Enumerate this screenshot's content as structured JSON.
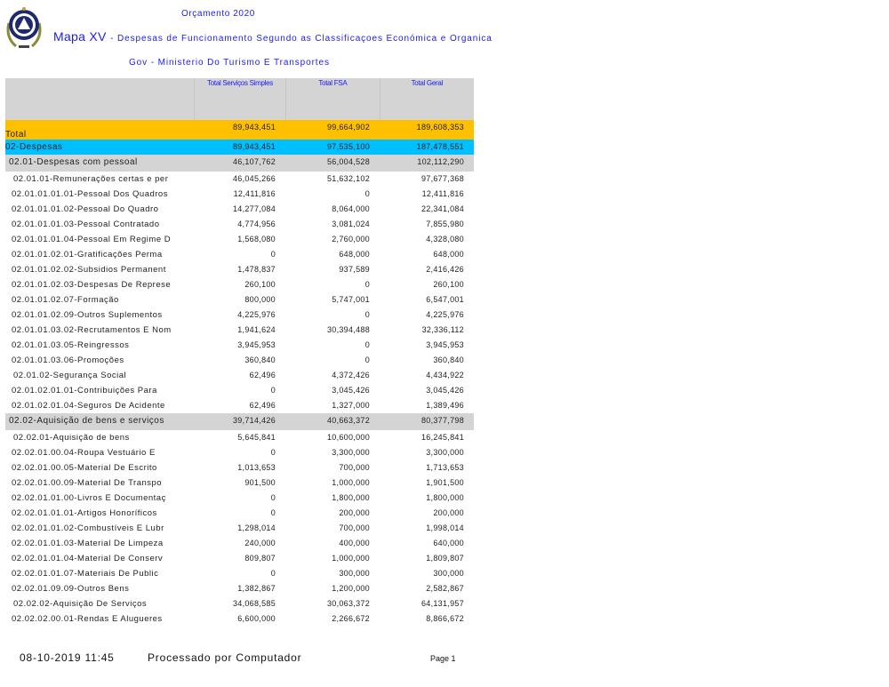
{
  "header": {
    "budget": "Orçamento 2020",
    "map_title": "Mapa XV",
    "map_subtitle": "- Despesas de Funcionamento Segundo as Classificaçoes Económica e Organica",
    "ministry": "Gov - Ministerio Do Turismo E Transportes"
  },
  "table": {
    "columns": [
      "",
      "Total Serviços Simples",
      "Total FSA",
      "Total Geral"
    ],
    "rows": [
      {
        "type": "total",
        "label": "Total",
        "v": [
          "89,943,451",
          "99,664,902",
          "189,608,353"
        ]
      },
      {
        "type": "desp",
        "label": "02-Despesas",
        "v": [
          "89,943,451",
          "97,535,100",
          "187,478,551"
        ]
      },
      {
        "type": "grp",
        "label": "02.01-Despesas com pessoal",
        "v": [
          "46,107,762",
          "56,004,528",
          "102,112,290"
        ]
      },
      {
        "type": "sub",
        "label": "02.01.01-Remunerações certas e per",
        "v": [
          "46,045,266",
          "51,632,102",
          "97,677,368"
        ]
      },
      {
        "type": "item",
        "label": "02.01.01.01.01-Pessoal Dos Quadros",
        "v": [
          "12,411,816",
          "0",
          "12,411,816"
        ]
      },
      {
        "type": "item",
        "label": "02.01.01.01.02-Pessoal Do Quadro",
        "v": [
          "14,277,084",
          "8,064,000",
          "22,341,084"
        ]
      },
      {
        "type": "item",
        "label": "02.01.01.01.03-Pessoal Contratado",
        "v": [
          "4,774,956",
          "3,081,024",
          "7,855,980"
        ]
      },
      {
        "type": "item",
        "label": "02.01.01.01.04-Pessoal Em Regime D",
        "v": [
          "1,568,080",
          "2,760,000",
          "4,328,080"
        ]
      },
      {
        "type": "item",
        "label": "02.01.01.02.01-Gratificações Perma",
        "v": [
          "0",
          "648,000",
          "648,000"
        ]
      },
      {
        "type": "item",
        "label": "02.01.01.02.02-Subsidios Permanent",
        "v": [
          "1,478,837",
          "937,589",
          "2,416,426"
        ]
      },
      {
        "type": "item",
        "label": "02.01.01.02.03-Despesas De Represe",
        "v": [
          "260,100",
          "0",
          "260,100"
        ]
      },
      {
        "type": "item",
        "label": "02.01.01.02.07-Formação",
        "v": [
          "800,000",
          "5,747,001",
          "6,547,001"
        ]
      },
      {
        "type": "item",
        "label": "02.01.01.02.09-Outros Suplementos",
        "v": [
          "4,225,976",
          "0",
          "4,225,976"
        ]
      },
      {
        "type": "item",
        "label": "02.01.01.03.02-Recrutamentos E Nom",
        "v": [
          "1,941,624",
          "30,394,488",
          "32,336,112"
        ]
      },
      {
        "type": "item",
        "label": "02.01.01.03.05-Reingressos",
        "v": [
          "3,945,953",
          "0",
          "3,945,953"
        ]
      },
      {
        "type": "item",
        "label": "02.01.01.03.06-Promoções",
        "v": [
          "360,840",
          "0",
          "360,840"
        ]
      },
      {
        "type": "sub",
        "label": "02.01.02-Segurança Social",
        "v": [
          "62,496",
          "4,372,426",
          "4,434,922"
        ]
      },
      {
        "type": "item",
        "label": "02.01.02.01.01-Contribuições Para",
        "v": [
          "0",
          "3,045,426",
          "3,045,426"
        ]
      },
      {
        "type": "item",
        "label": "02.01.02.01.04-Seguros De Acidente",
        "v": [
          "62,496",
          "1,327,000",
          "1,389,496"
        ]
      },
      {
        "type": "grp",
        "label": "02.02-Aquisição de bens e serviços",
        "v": [
          "39,714,426",
          "40,663,372",
          "80,377,798"
        ]
      },
      {
        "type": "sub",
        "label": "02.02.01-Aquisição de bens",
        "v": [
          "5,645,841",
          "10,600,000",
          "16,245,841"
        ]
      },
      {
        "type": "item",
        "label": "02.02.01.00.04-Roupa Vestuário E",
        "v": [
          "0",
          "3,300,000",
          "3,300,000"
        ]
      },
      {
        "type": "item",
        "label": "02.02.01.00.05-Material De Escrito",
        "v": [
          "1,013,653",
          "700,000",
          "1,713,653"
        ]
      },
      {
        "type": "item",
        "label": "02.02.01.00.09-Material De Transpo",
        "v": [
          "901,500",
          "1,000,000",
          "1,901,500"
        ]
      },
      {
        "type": "item",
        "label": "02.02.01.01.00-Livros E Documentaç",
        "v": [
          "0",
          "1,800,000",
          "1,800,000"
        ]
      },
      {
        "type": "item",
        "label": "02.02.01.01.01-Artigos Honoríficos",
        "v": [
          "0",
          "200,000",
          "200,000"
        ]
      },
      {
        "type": "item",
        "label": "02.02.01.01.02-Combustíveis E Lubr",
        "v": [
          "1,298,014",
          "700,000",
          "1,998,014"
        ]
      },
      {
        "type": "item",
        "label": "02.02.01.01.03-Material De Limpeza",
        "v": [
          "240,000",
          "400,000",
          "640,000"
        ]
      },
      {
        "type": "item",
        "label": "02.02.01.01.04-Material De Conserv",
        "v": [
          "809,807",
          "1,000,000",
          "1,809,807"
        ]
      },
      {
        "type": "item",
        "label": "02.02.01.01.07-Materiais De Public",
        "v": [
          "0",
          "300,000",
          "300,000"
        ]
      },
      {
        "type": "item",
        "label": "02.02.01.09.09-Outros Bens",
        "v": [
          "1,382,867",
          "1,200,000",
          "2,582,867"
        ]
      },
      {
        "type": "sub",
        "label": "02.02.02-Aquisição De Serviços",
        "v": [
          "34,068,585",
          "30,063,372",
          "64,131,957"
        ]
      },
      {
        "type": "item",
        "label": "02.02.02.00.01-Rendas E Alugueres",
        "v": [
          "6,600,000",
          "2,266,672",
          "8,866,672"
        ]
      }
    ]
  },
  "footer": {
    "datetime": "08-10-2019 11:45",
    "processed": "Processado por Computador",
    "page": "Page 1"
  },
  "colors": {
    "title_blue": "#1a1aff",
    "total_row": "#ffc000",
    "despesas_row": "#00bfff",
    "group_row": "#d4d4d4"
  }
}
